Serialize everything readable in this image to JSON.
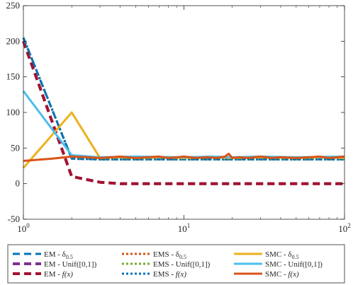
{
  "chart_data": {
    "type": "line",
    "title": "",
    "xlabel": "",
    "ylabel": "",
    "x_scale": "log",
    "xlim": [
      1,
      100
    ],
    "ylim": [
      -50,
      250
    ],
    "grid": false,
    "legend_position": "bottom",
    "x_ticks": [
      {
        "value": 1,
        "base": "10",
        "exp": "0"
      },
      {
        "value": 10,
        "base": "10",
        "exp": "1"
      },
      {
        "value": 100,
        "base": "10",
        "exp": "2"
      }
    ],
    "y_ticks": [
      {
        "value": -50,
        "label": "-50"
      },
      {
        "value": 0,
        "label": "0"
      },
      {
        "value": 50,
        "label": "50"
      },
      {
        "value": 100,
        "label": "100"
      },
      {
        "value": 150,
        "label": "150"
      },
      {
        "value": 200,
        "label": "200"
      },
      {
        "value": 250,
        "label": "250"
      }
    ],
    "series": [
      {
        "name": "EM - δ0.5",
        "legend": {
          "main": "EM - δ",
          "sub": "0.5",
          "tail": ""
        },
        "color": "#0072BD",
        "dash": "dash",
        "width": 3,
        "x": [
          1,
          2,
          3,
          5,
          10,
          20,
          50,
          100
        ],
        "y": [
          205,
          35,
          34,
          34,
          34,
          34,
          34,
          34
        ]
      },
      {
        "name": "EM - Unif([0,1])",
        "legend": {
          "main": "EM - Unif([0,1])",
          "sub": "",
          "tail": ""
        },
        "color": "#7E2F8E",
        "dash": "dash",
        "width": 4,
        "x": [
          1,
          2,
          3,
          4,
          5,
          10,
          20,
          50,
          100
        ],
        "y": [
          200,
          10,
          2,
          0,
          0,
          0,
          0,
          0,
          0
        ]
      },
      {
        "name": "EM - f(x)",
        "legend": {
          "main": "EM - ",
          "sub": "",
          "tail": "f(x)",
          "italic": true
        },
        "color": "#A2142F",
        "dash": "dash",
        "width": 4,
        "x": [
          1,
          2,
          3,
          4,
          5,
          10,
          20,
          50,
          100
        ],
        "y": [
          200,
          10,
          2,
          0,
          0,
          0,
          0,
          0,
          0
        ]
      },
      {
        "name": "EMS - δ0.5",
        "legend": {
          "main": "EMS - δ",
          "sub": "0.5",
          "tail": ""
        },
        "color": "#D95319",
        "dash": "dot",
        "width": 3,
        "x": [
          1,
          2,
          3,
          5,
          10,
          20,
          50,
          100
        ],
        "y": [
          205,
          35,
          34,
          34,
          34,
          34,
          34,
          34
        ]
      },
      {
        "name": "EMS - Unif([0,1])",
        "legend": {
          "main": "EMS - Unif([0,1])",
          "sub": "",
          "tail": ""
        },
        "color": "#77AC30",
        "dash": "dot",
        "width": 3,
        "x": [
          1,
          2,
          3,
          5,
          10,
          20,
          50,
          100
        ],
        "y": [
          205,
          36,
          34,
          34,
          34,
          34,
          34,
          34
        ]
      },
      {
        "name": "EMS - f(x)",
        "legend": {
          "main": "EMS - ",
          "sub": "",
          "tail": "f(x)",
          "italic": true
        },
        "color": "#0072BD",
        "dash": "dot",
        "width": 3,
        "x": [
          1,
          2,
          3,
          5,
          10,
          20,
          50,
          100
        ],
        "y": [
          205,
          35,
          34,
          34,
          34,
          34,
          34,
          34
        ]
      },
      {
        "name": "SMC - δ0.5",
        "legend": {
          "main": "SMC - δ",
          "sub": "0.5",
          "tail": ""
        },
        "color": "#EDB120",
        "dash": "solid",
        "width": 3,
        "x": [
          1,
          2,
          3,
          4,
          5,
          7,
          10,
          15,
          20,
          30,
          50,
          70,
          100
        ],
        "y": [
          22,
          100,
          36,
          37,
          36,
          37,
          36,
          37,
          36,
          37,
          36,
          37,
          36
        ]
      },
      {
        "name": "SMC - Unif([0,1])",
        "legend": {
          "main": "SMC - Unif([0,1])",
          "sub": "",
          "tail": ""
        },
        "color": "#4DBEEE",
        "dash": "solid",
        "width": 3,
        "x": [
          1,
          2,
          3,
          5,
          10,
          15,
          20,
          30,
          50,
          100
        ],
        "y": [
          130,
          40,
          37,
          38,
          37,
          38,
          37,
          38,
          37,
          38
        ]
      },
      {
        "name": "SMC - f(x)",
        "legend": {
          "main": "SMC - ",
          "sub": "",
          "tail": "f(x)",
          "italic": true
        },
        "color": "#D95319",
        "dash": "solid",
        "width": 3,
        "x": [
          1,
          1.5,
          2,
          2.5,
          3,
          3.5,
          4,
          5,
          6,
          7,
          8,
          9,
          10,
          12,
          14,
          16,
          18,
          19,
          20,
          22,
          25,
          30,
          35,
          40,
          50,
          60,
          70,
          80,
          90,
          100
        ],
        "y": [
          32,
          35,
          38,
          37,
          36,
          37,
          38,
          36,
          37,
          38,
          36,
          37,
          38,
          36,
          37,
          36,
          38,
          42,
          36,
          37,
          36,
          38,
          36,
          37,
          36,
          37,
          38,
          36,
          37,
          38
        ]
      }
    ]
  }
}
